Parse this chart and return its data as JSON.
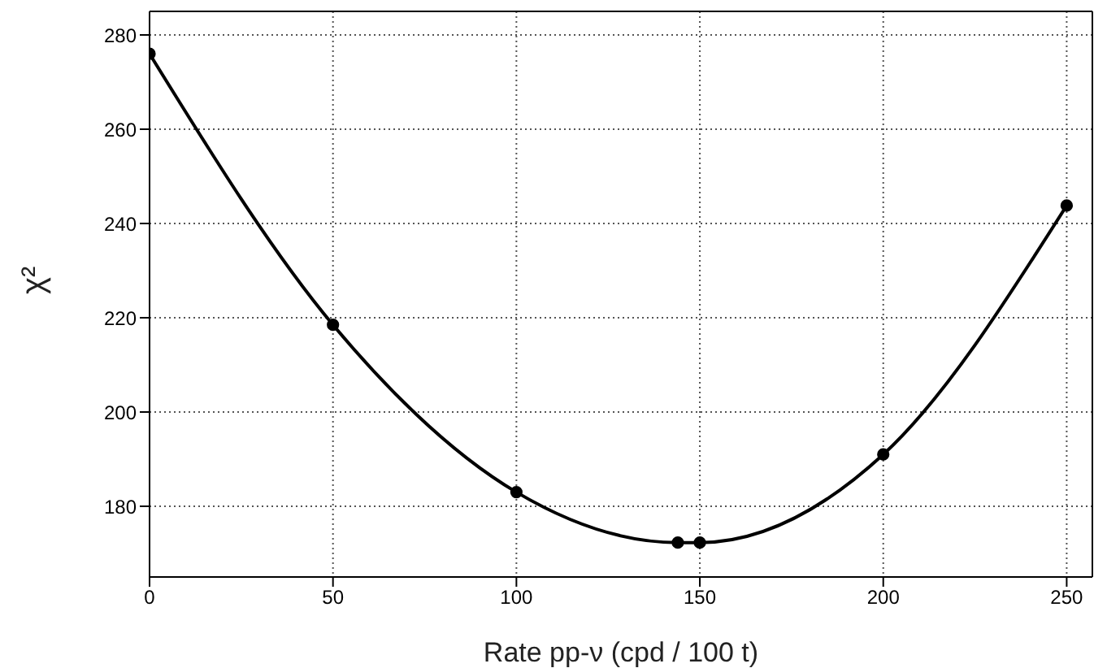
{
  "chart_data": {
    "type": "line",
    "xlabel": "Rate pp-ν (cpd / 100 t)",
    "ylabel": "χ²",
    "x": [
      0,
      50,
      100,
      144,
      150,
      200,
      250
    ],
    "series": [
      {
        "color": "#000000",
        "values": [
          276,
          218.5,
          183,
          172.3,
          172.3,
          191,
          243.8
        ]
      }
    ],
    "xlim": [
      0,
      257
    ],
    "xticks": [
      0,
      50,
      100,
      150,
      200,
      250
    ],
    "ylim": [
      165,
      285
    ],
    "yticks": [
      180,
      200,
      220,
      240,
      260,
      280
    ],
    "grid": true,
    "marker": "circle",
    "line_style": "solid"
  }
}
